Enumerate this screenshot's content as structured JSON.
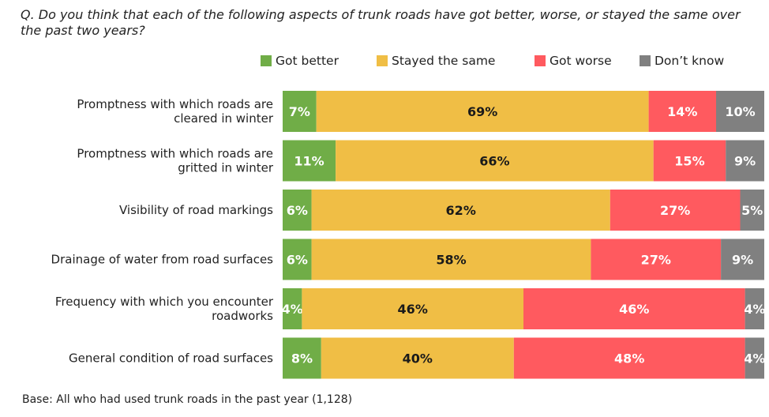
{
  "question": "Q. Do you think that each of the following aspects of trunk roads have got better, worse, or stayed the same over the past two years?",
  "footnote": "Base: All who had used trunk roads in the past year (1,128)",
  "chart_data": {
    "type": "bar",
    "orientation": "horizontal",
    "stacked": true,
    "xlim": [
      0,
      100
    ],
    "legend_position": "top",
    "categories": [
      [
        "Promptness with which roads are",
        "cleared in winter"
      ],
      [
        "Promptness with which roads are",
        "gritted in winter"
      ],
      [
        "Visibility of road markings"
      ],
      [
        "Drainage of water from road surfaces"
      ],
      [
        "Frequency with which you encounter",
        "roadworks"
      ],
      [
        "General condition of road surfaces"
      ]
    ],
    "series": [
      {
        "name": "Got better",
        "color": "#70AD47",
        "label_color": "#ffffff",
        "values": [
          7,
          11,
          6,
          6,
          4,
          8
        ],
        "labels": [
          "7%",
          "11%",
          "6%",
          "6%",
          "4%",
          "8%"
        ]
      },
      {
        "name": "Stayed the same",
        "color": "#F0BE45",
        "label_color": "#1a1a1a",
        "values": [
          69,
          66,
          62,
          58,
          46,
          40
        ],
        "labels": [
          "69%",
          "66%",
          "62%",
          "58%",
          "46%",
          "40%"
        ]
      },
      {
        "name": "Got worse",
        "color": "#FF5A5F",
        "label_color": "#ffffff",
        "values": [
          14,
          15,
          27,
          27,
          46,
          48
        ],
        "labels": [
          "14%",
          "15%",
          "27%",
          "27%",
          "46%",
          "48%"
        ]
      },
      {
        "name": "Don’t know",
        "color": "#808080",
        "label_color": "#ffffff",
        "values": [
          10,
          9,
          5,
          9,
          4,
          4
        ],
        "labels": [
          "10%",
          "9%",
          "5%",
          "9%",
          "4%",
          "4%"
        ]
      }
    ]
  }
}
